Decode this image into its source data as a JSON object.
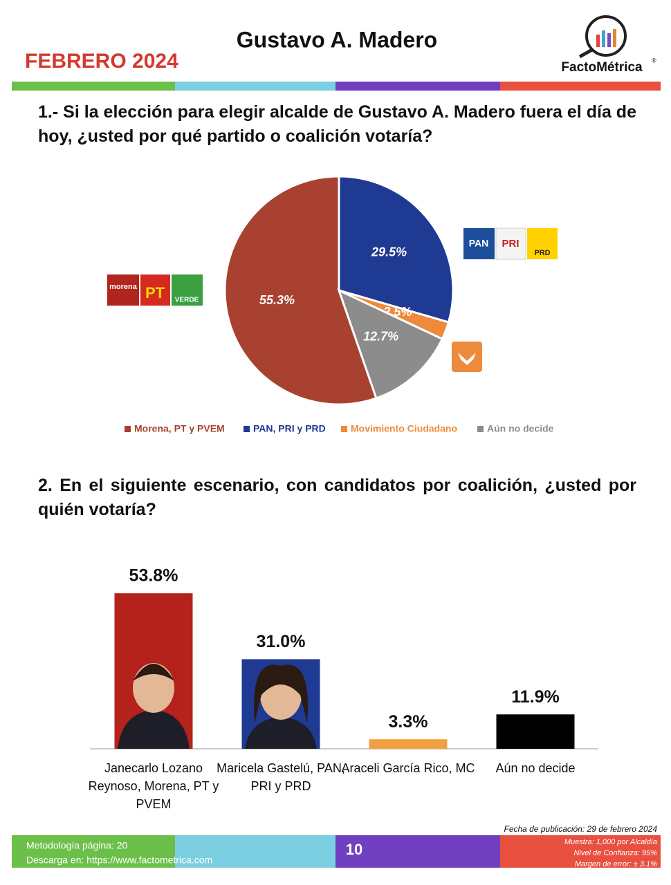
{
  "header": {
    "month": "FEBRERO 2024",
    "title": "Gustavo A. Madero",
    "brand": "FactoMétrica",
    "brand_mark": "®"
  },
  "chart_data": [
    {
      "type": "pie",
      "title": "1.- Si la elección para elegir alcalde de Gustavo A. Madero fuera el día de hoy, ¿usted por qué partido o coalición votaría?",
      "categories": [
        "Morena, PT y PVEM",
        "PAN, PRI y PRD",
        "Movimiento Ciudadano",
        "Aún no decide"
      ],
      "values": [
        55.3,
        29.5,
        2.5,
        12.7
      ],
      "value_labels": [
        "55.3%",
        "29.5%",
        "2.5%",
        "12.7%"
      ],
      "colors": [
        "#a8412f",
        "#1f3a93",
        "#ee8a3c",
        "#8c8c8c"
      ],
      "logos": [
        [
          "morena",
          "PT",
          "VERDE"
        ],
        [
          "PAN",
          "PRI",
          "PRD"
        ]
      ]
    },
    {
      "type": "bar",
      "title": "2. En el siguiente escenario, con candidatos por coalición, ¿usted por quién votaría?",
      "categories": [
        "Janecarlo Lozano Reynoso, Morena, PT y PVEM",
        "Maricela Gastelú, PAN, PRI y PRD",
        "Araceli García Rico, MC",
        "Aún no decide"
      ],
      "values": [
        53.8,
        31.0,
        3.3,
        11.9
      ],
      "value_labels": [
        "53.8%",
        "31.0%",
        "3.3%",
        "11.9%"
      ],
      "colors": [
        "#b5211b",
        "#1f3a93",
        "#f0a040",
        "#000000"
      ]
    }
  ],
  "footer": {
    "methodology": "Metodología página: 20",
    "download": "Descarga en: https://www.factometrica.com",
    "page": "10",
    "date": "Fecha de publicación: 29 de febrero 2024",
    "sample": "Muestra:  1,000 por Alcaldía",
    "confidence": "Nivel de Confianza: 95%",
    "margin": "Margen de error: ± 3.1%"
  }
}
